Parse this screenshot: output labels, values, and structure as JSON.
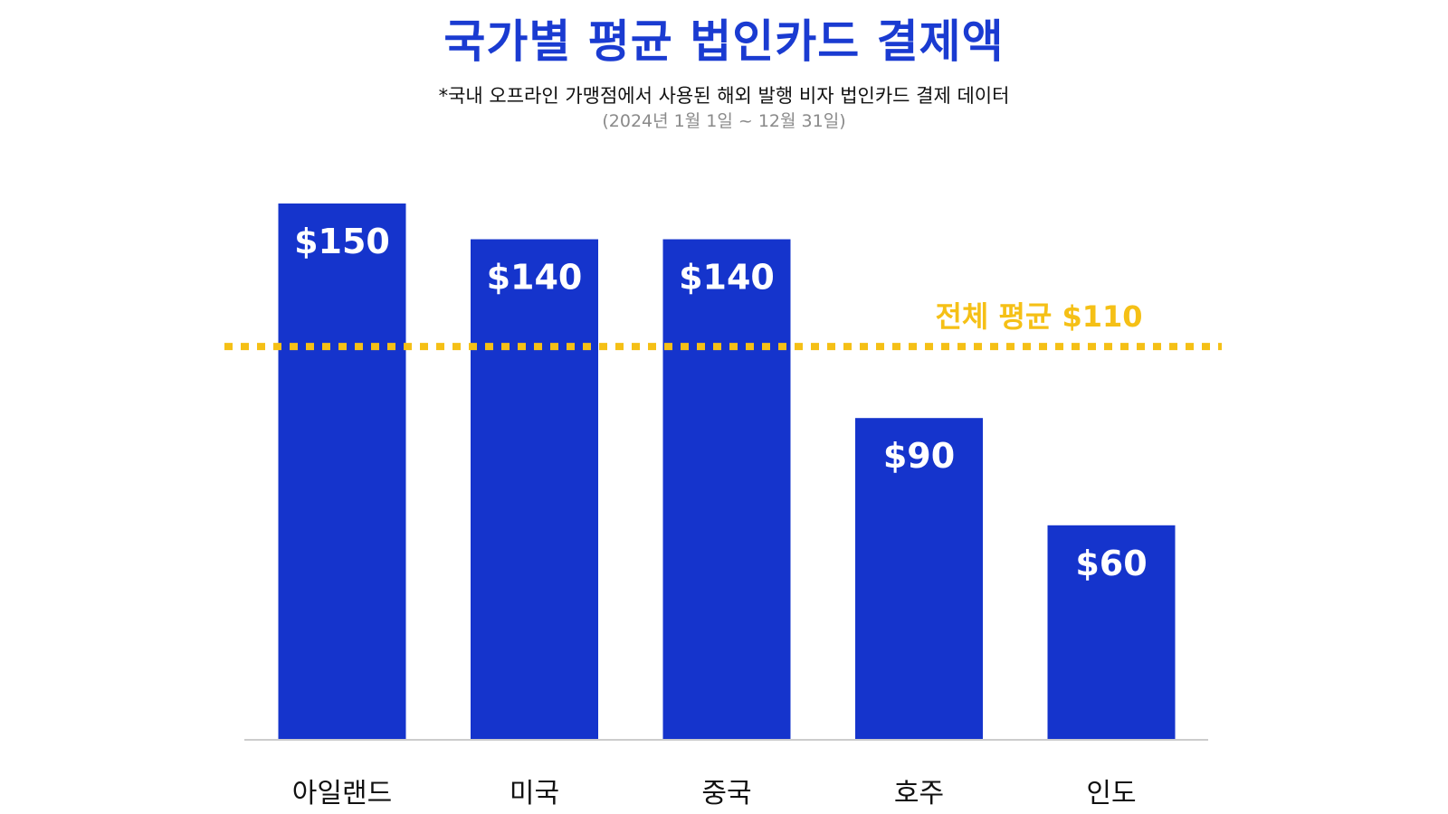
{
  "colors": {
    "bar": "#1534CC",
    "title": "#1A3BD1",
    "average": "#F5C016",
    "axis": "#CCCCCC"
  },
  "chart_data": {
    "type": "bar",
    "title": "국가별 평균 법인카드 결제액",
    "subtitle": "*국내 오프라인 가맹점에서 사용된 해외 발행 비자 법인카드 결제 데이터",
    "note": "(2024년 1월 1일 ~ 12월 31일)",
    "categories": [
      "아일랜드",
      "미국",
      "중국",
      "호주",
      "인도"
    ],
    "values": [
      150,
      140,
      140,
      90,
      60
    ],
    "value_labels": [
      "$150",
      "$140",
      "$140",
      "$90",
      "$60"
    ],
    "average": {
      "label": "전체 평균 $110",
      "value": 110
    },
    "xlabel": "",
    "ylabel": "",
    "ylim": [
      0,
      150
    ],
    "grid": false
  }
}
